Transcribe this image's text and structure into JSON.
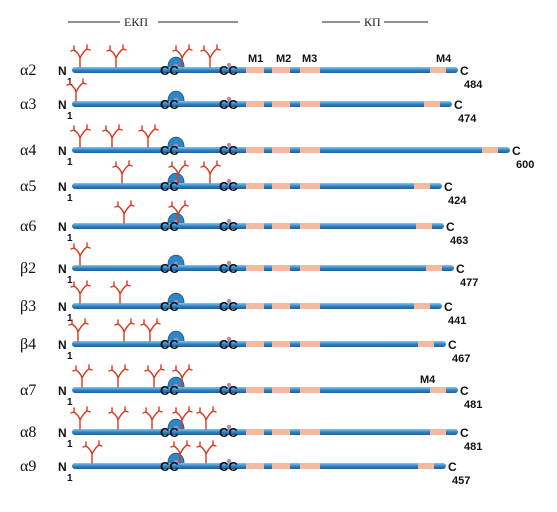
{
  "regions": {
    "extracellular": "ЕКП",
    "cytoplasmic": "КП"
  },
  "terminal_n": "N",
  "terminal_c": "C",
  "start_index": "1",
  "cys_pair": "CC",
  "membrane_labels": [
    "M1",
    "M2",
    "M3",
    "M4"
  ],
  "colors": {
    "chain": "#2f86c6",
    "chain_highlight": "#8cc6ee",
    "membrane_segment": "#f5b9a0",
    "glycan": "#d9381e",
    "disulfide_loop": "#2f86c6",
    "cys_dot": "#b08ab8"
  },
  "subunits": [
    {
      "name": "α2",
      "length": "484",
      "glycans": 4,
      "top_m_labels": true
    },
    {
      "name": "α3",
      "length": "474",
      "glycans": 1
    },
    {
      "name": "α4",
      "length": "600",
      "glycans": 3
    },
    {
      "name": "α5",
      "length": "424",
      "glycans": 3
    },
    {
      "name": "α6",
      "length": "463",
      "glycans": 2
    },
    {
      "name": "β2",
      "length": "477",
      "glycans": 1
    },
    {
      "name": "β3",
      "length": "441",
      "glycans": 2
    },
    {
      "name": "β4",
      "length": "467",
      "glycans": 3
    },
    {
      "name": "α7",
      "length": "481",
      "glycans": 4,
      "m4_label": "M4"
    },
    {
      "name": "α8",
      "length": "481",
      "glycans": 5
    },
    {
      "name": "α9",
      "length": "457",
      "glycans": 3
    }
  ]
}
